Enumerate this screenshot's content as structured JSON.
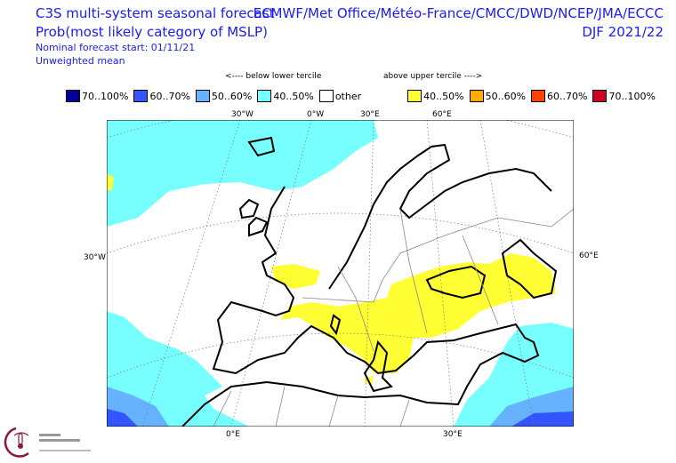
{
  "header": {
    "title": "C3S multi-system seasonal forecast",
    "subtitle": "Prob(most likely category of MSLP)",
    "start": "Nominal forecast start: 01/11/21",
    "method": "Unweighted mean",
    "centres": "ECMWF/Met Office/Météo-France/CMCC/DWD/NCEP/JMA/ECCC",
    "season": "DJF 2021/22"
  },
  "legend": {
    "below_caption": "<---- below lower tercile",
    "above_caption": "above upper tercile ---->",
    "items": [
      {
        "label": "70..100%",
        "color": "#000099"
      },
      {
        "label": "60..70%",
        "color": "#3355ff"
      },
      {
        "label": "50..60%",
        "color": "#66b2ff"
      },
      {
        "label": "40..50%",
        "color": "#77ffff"
      },
      {
        "label": "other",
        "color": "#ffffff"
      },
      {
        "label": "40..50%",
        "color": "#ffff33"
      },
      {
        "label": "50..60%",
        "color": "#ffaa00"
      },
      {
        "label": "60..70%",
        "color": "#ff4400"
      },
      {
        "label": "70..100%",
        "color": "#cc0022"
      }
    ]
  },
  "map": {
    "top_labels": [
      "30°W",
      "0°W",
      "30°E",
      "60°E"
    ],
    "left_label": "30°W",
    "right_label": "60°E",
    "bottom_labels": [
      "0°E",
      "30°E"
    ]
  },
  "logo": {
    "text": "Climate Change Service"
  }
}
